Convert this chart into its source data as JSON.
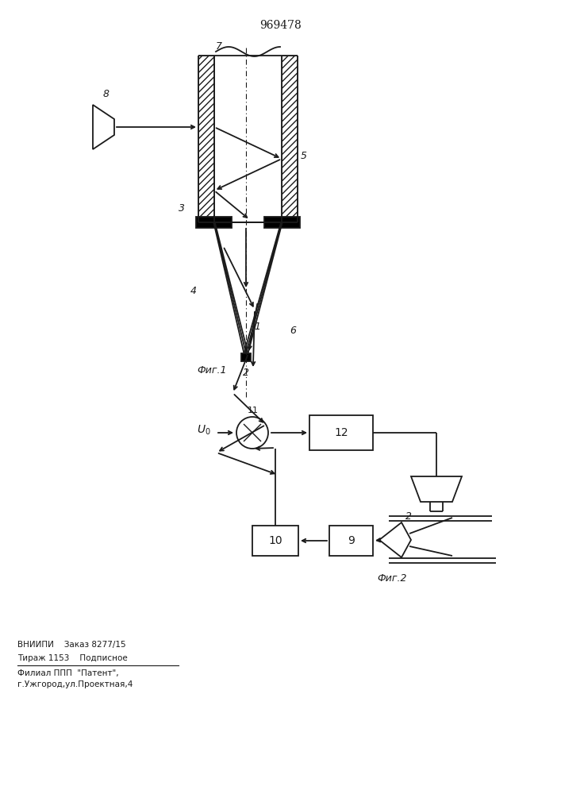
{
  "title": "969478",
  "fig1_label": "Фиг.1",
  "fig2_label": "Фиг.2",
  "footer_line1": "ВНИИПИ    Заказ 8277/15",
  "footer_line2": "Тираж 1153    Подписное",
  "footer_line3": "Филиал ППП  \"Патент\",",
  "footer_line4": "г.Ужгород,ул.Проектная,4",
  "bg_color": "#ffffff",
  "line_color": "#1a1a1a"
}
